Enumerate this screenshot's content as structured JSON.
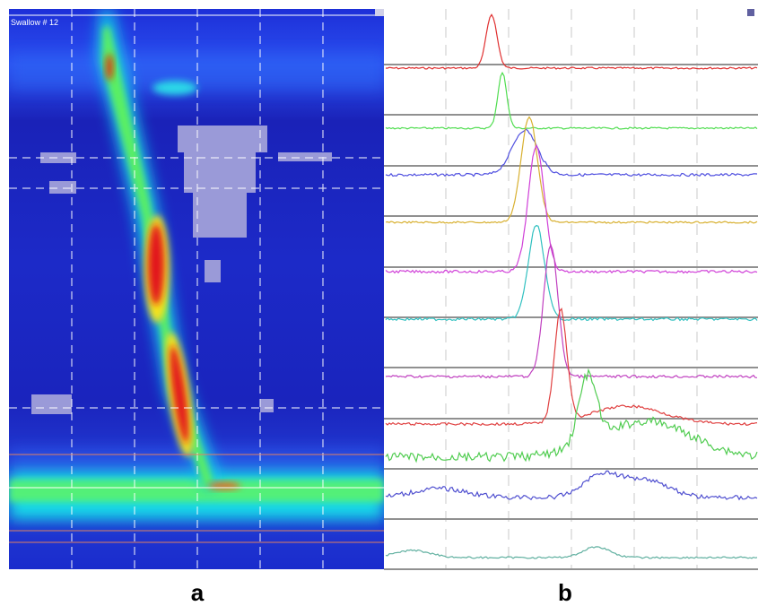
{
  "panel_a": {
    "title": "Swallow # 12",
    "label": "a"
  },
  "panel_b": {
    "label": "b"
  }
}
